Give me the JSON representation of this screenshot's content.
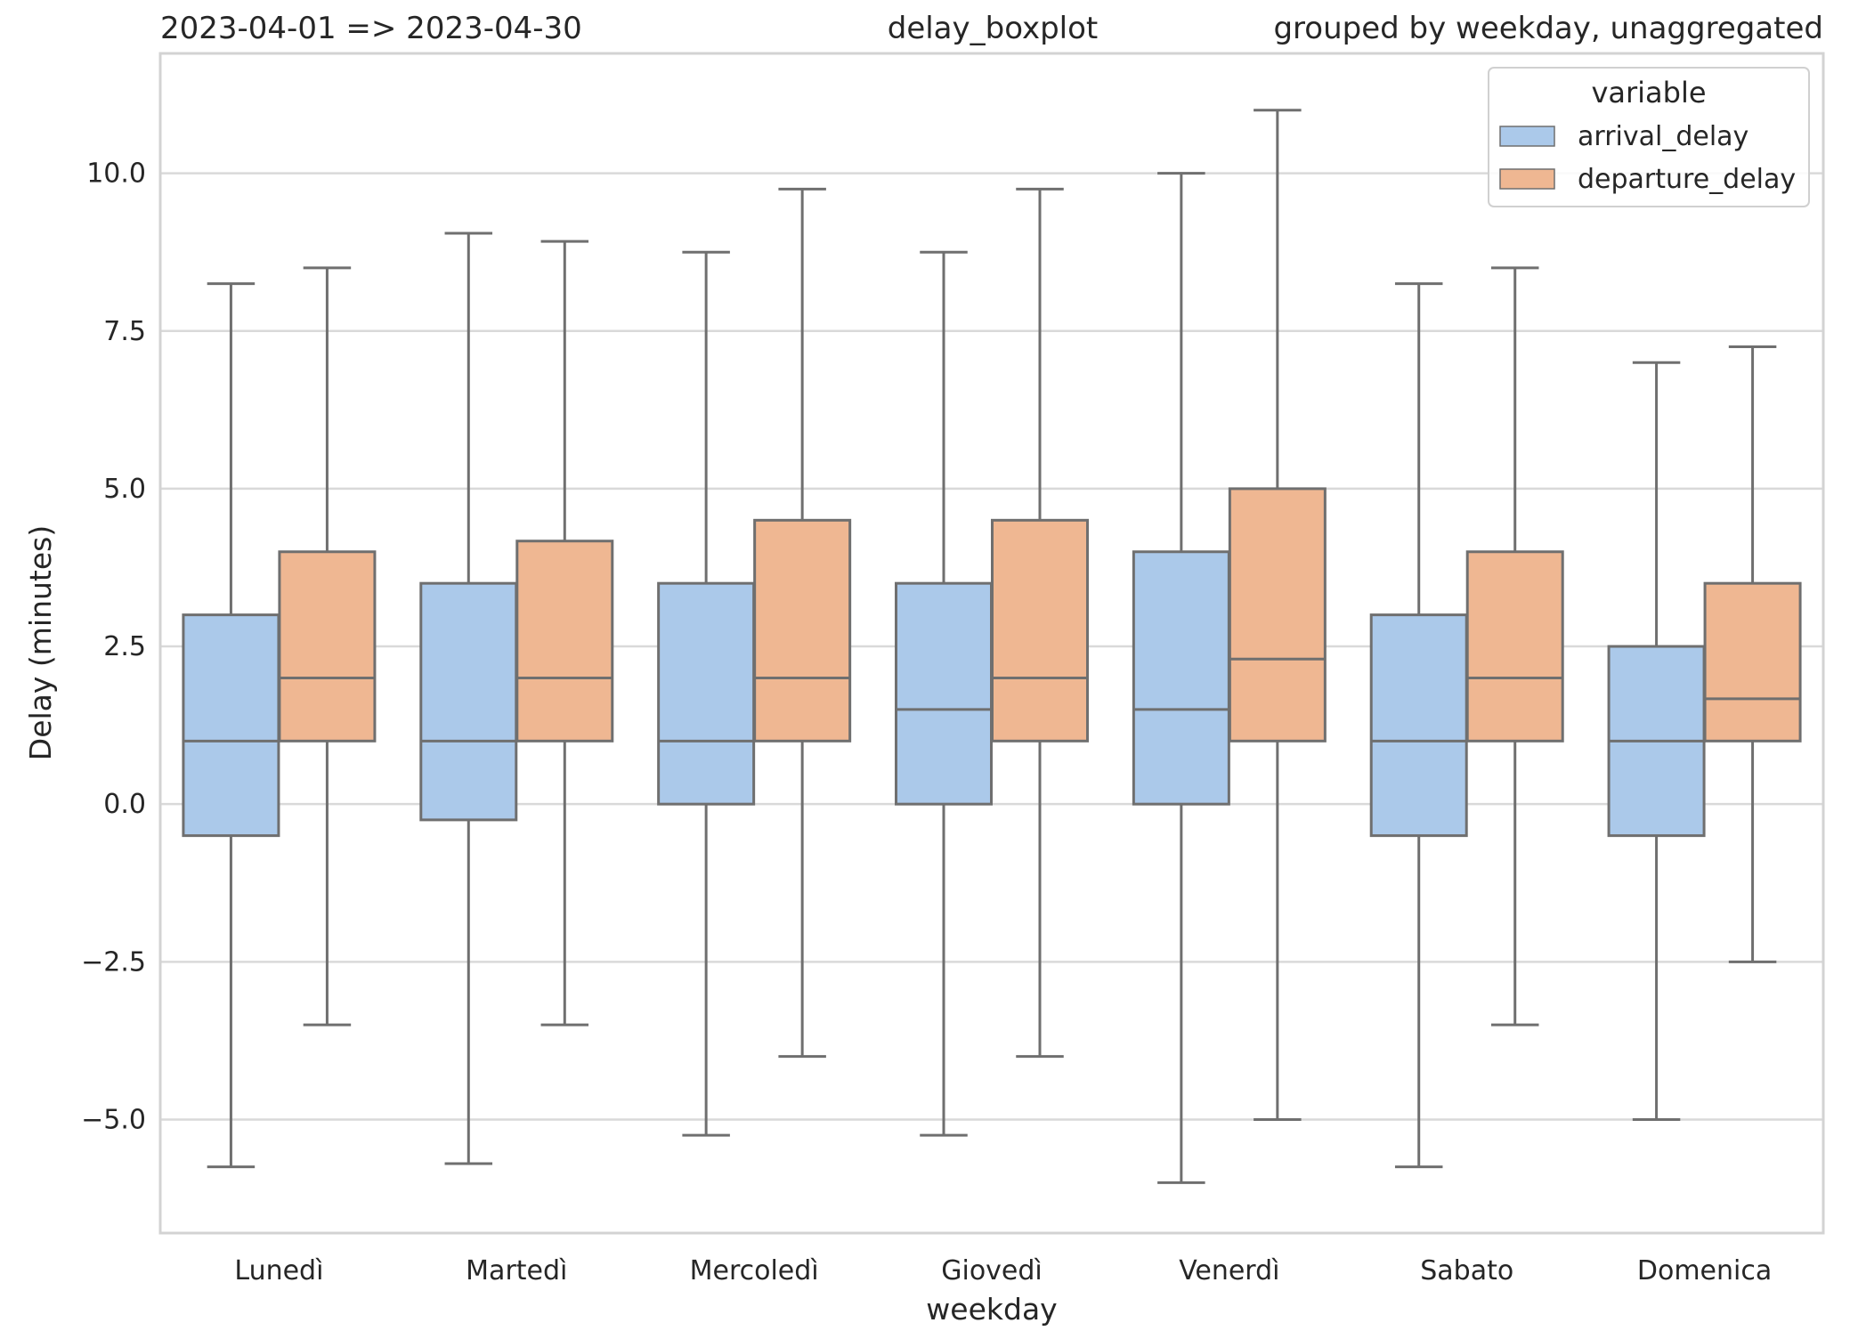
{
  "header": {
    "left": "2023-04-01 => 2023-04-30",
    "center": "delay_boxplot",
    "right": "grouped by weekday, unaggregated"
  },
  "chart_data": {
    "type": "boxplot",
    "xlabel": "weekday",
    "ylabel": "Delay (minutes)",
    "ylim": [
      -6.8,
      11.9
    ],
    "yticks": [
      -5.0,
      -2.5,
      0.0,
      2.5,
      5.0,
      7.5,
      10.0
    ],
    "ytick_labels": [
      "−5.0",
      "−2.5",
      "0.0",
      "2.5",
      "5.0",
      "7.5",
      "10.0"
    ],
    "grid": "horizontal",
    "legend": {
      "title": "variable",
      "placement": "top-right"
    },
    "categories": [
      "Lunedì",
      "Martedì",
      "Mercoledì",
      "Giovedì",
      "Venerdì",
      "Sabato",
      "Domenica"
    ],
    "series": [
      {
        "name": "arrival_delay",
        "color": "#abc9ea",
        "boxes": [
          {
            "whislo": -5.75,
            "q1": -0.5,
            "med": 1.0,
            "q3": 3.0,
            "whishi": 8.25
          },
          {
            "whislo": -5.7,
            "q1": -0.25,
            "med": 1.0,
            "q3": 3.5,
            "whishi": 9.05
          },
          {
            "whislo": -5.25,
            "q1": 0.0,
            "med": 1.0,
            "q3": 3.5,
            "whishi": 8.75
          },
          {
            "whislo": -5.25,
            "q1": 0.0,
            "med": 1.5,
            "q3": 3.5,
            "whishi": 8.75
          },
          {
            "whislo": -6.0,
            "q1": 0.0,
            "med": 1.5,
            "q3": 4.0,
            "whishi": 10.0
          },
          {
            "whislo": -5.75,
            "q1": -0.5,
            "med": 1.0,
            "q3": 3.0,
            "whishi": 8.25
          },
          {
            "whislo": -5.0,
            "q1": -0.5,
            "med": 1.0,
            "q3": 2.5,
            "whishi": 7.0
          }
        ]
      },
      {
        "name": "departure_delay",
        "color": "#efb792",
        "boxes": [
          {
            "whislo": -3.5,
            "q1": 1.0,
            "med": 2.0,
            "q3": 4.0,
            "whishi": 8.5
          },
          {
            "whislo": -3.5,
            "q1": 1.0,
            "med": 2.0,
            "q3": 4.17,
            "whishi": 8.92
          },
          {
            "whislo": -4.0,
            "q1": 1.0,
            "med": 2.0,
            "q3": 4.5,
            "whishi": 9.75
          },
          {
            "whislo": -4.0,
            "q1": 1.0,
            "med": 2.0,
            "q3": 4.5,
            "whishi": 9.75
          },
          {
            "whislo": -5.0,
            "q1": 1.0,
            "med": 2.3,
            "q3": 5.0,
            "whishi": 11.0
          },
          {
            "whislo": -3.5,
            "q1": 1.0,
            "med": 2.0,
            "q3": 4.0,
            "whishi": 8.5
          },
          {
            "whislo": -2.5,
            "q1": 1.0,
            "med": 1.67,
            "q3": 3.5,
            "whishi": 7.25
          }
        ]
      }
    ],
    "colors": {
      "line": "#6f6f6f",
      "grid": "#d9d9d9",
      "frame": "#d3d3d3",
      "text": "#262626"
    }
  }
}
